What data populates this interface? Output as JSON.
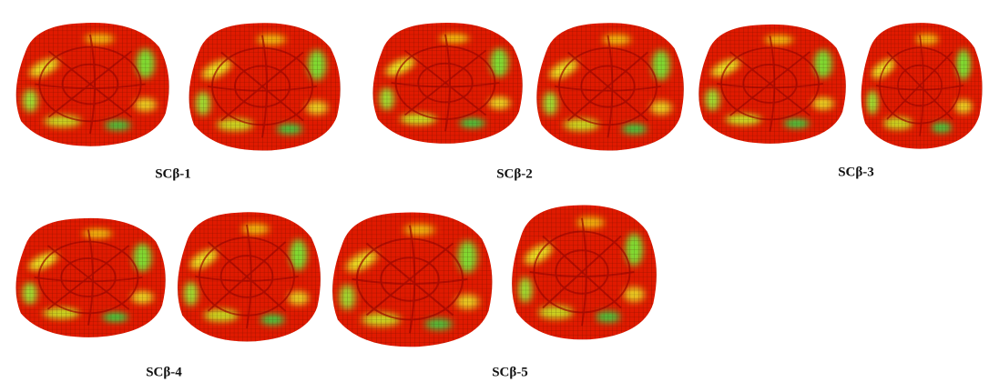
{
  "figures": [
    {
      "label": "SCβ-1"
    },
    {
      "label": "SCβ-2"
    },
    {
      "label": "SCβ-3"
    },
    {
      "label": "SCβ-4"
    },
    {
      "label": "SCβ-5"
    }
  ]
}
